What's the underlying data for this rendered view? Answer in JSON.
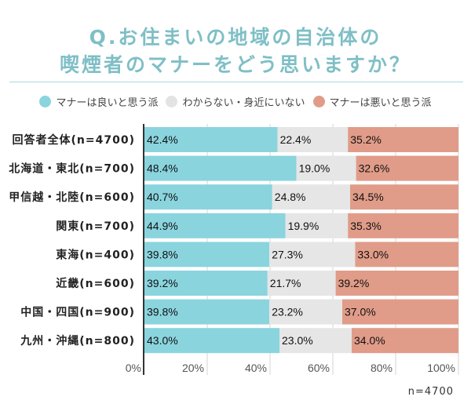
{
  "title_lines": [
    "Q.お住まいの地域の自治体の",
    "喫煙者のマナーをどう思いますか？"
  ],
  "colors": {
    "good": "#8ad4de",
    "neutral": "#e6e6e6",
    "bad": "#e09c88",
    "title": "#7fbfc6"
  },
  "legend": [
    {
      "label": "マナーは良いと思う派",
      "color": "#8ad4de"
    },
    {
      "label": "わからない・身近にいない",
      "color": "#e3e3e3"
    },
    {
      "label": "マナーは悪いと思う派",
      "color": "#e09c88"
    }
  ],
  "note": "n=4700",
  "chart_data": {
    "type": "bar",
    "orientation": "horizontal",
    "stacked": true,
    "title": "Q.お住まいの地域の自治体の喫煙者のマナーをどう思いますか？",
    "categories": [
      "回答者全体(n=4700)",
      "北海道・東北(n=700)",
      "甲信越・北陸(n=600)",
      "関東(n=700)",
      "東海(n=400)",
      "近畿(n=600)",
      "中国・四国(n=900)",
      "九州・沖縄(n=800)"
    ],
    "series": [
      {
        "name": "マナーは良いと思う派",
        "values": [
          42.4,
          48.4,
          40.7,
          44.9,
          39.8,
          39.2,
          39.8,
          43.0
        ]
      },
      {
        "name": "わからない・身近にいない",
        "values": [
          22.4,
          19.0,
          24.8,
          19.9,
          27.3,
          21.7,
          23.2,
          23.0
        ]
      },
      {
        "name": "マナーは悪いと思う派",
        "values": [
          35.2,
          32.6,
          34.5,
          35.3,
          33.0,
          39.2,
          37.0,
          34.0
        ]
      }
    ],
    "value_labels": [
      [
        "42.4%",
        "22.4%",
        "35.2%"
      ],
      [
        "48.4%",
        "19.0%",
        "32.6%"
      ],
      [
        "40.7%",
        "24.8%",
        "34.5%"
      ],
      [
        "44.9%",
        "19.9%",
        "35.3%"
      ],
      [
        "39.8%",
        "27.3%",
        "33.0%"
      ],
      [
        "39.2%",
        "21.7%",
        "39.2%"
      ],
      [
        "39.8%",
        "23.2%",
        "37.0%"
      ],
      [
        "43.0%",
        "23.0%",
        "34.0%"
      ]
    ],
    "xticks": [
      "0%",
      "20%",
      "40%",
      "60%",
      "80%",
      "100%"
    ],
    "xlim": [
      0,
      100
    ],
    "grid": true,
    "legend_position": "top",
    "xlabel": "",
    "ylabel": ""
  }
}
